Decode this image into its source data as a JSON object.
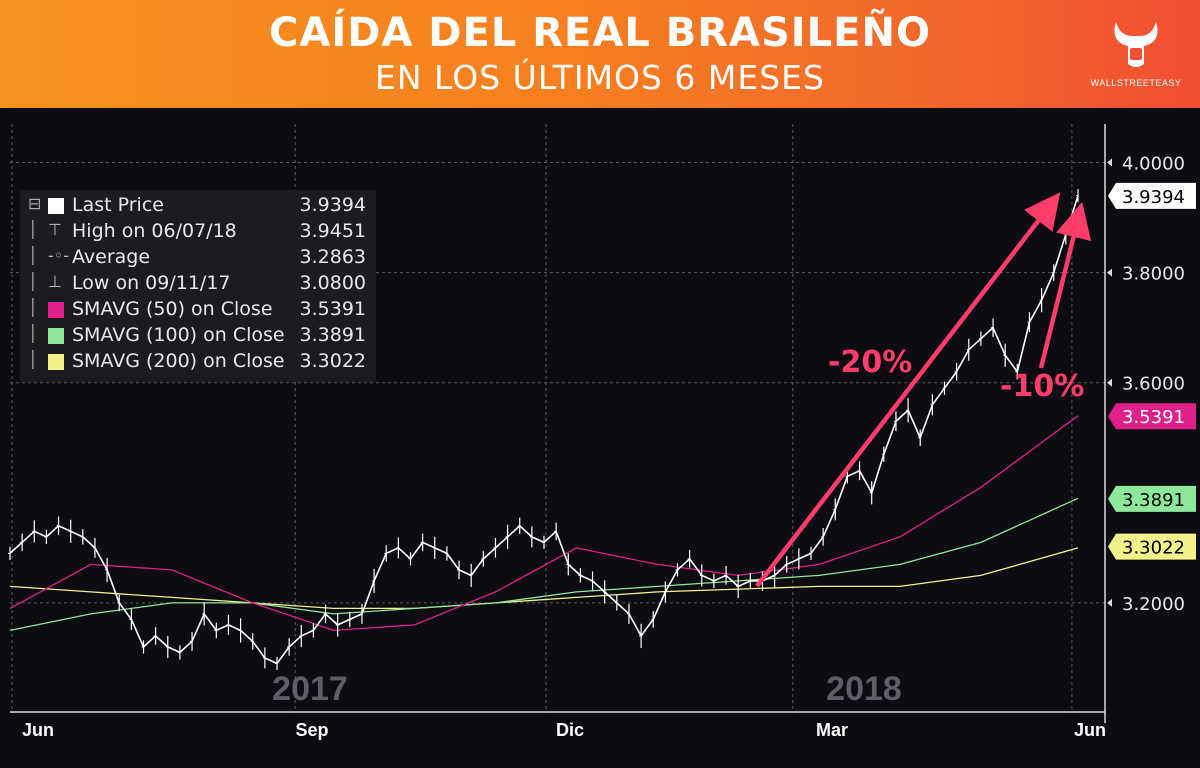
{
  "header": {
    "title": "CAÍDA DEL REAL BRASILEÑO",
    "subtitle": "EN LOS ÚLTIMOS 6 MESES",
    "logo_text": "WALLSTREETEASY"
  },
  "legend": [
    {
      "label": "Last Price",
      "value": "3.9394",
      "color": "#ffffff",
      "icon": "square-icon"
    },
    {
      "label": "High on 06/07/18",
      "value": "3.9451",
      "color": "",
      "icon": "high-marker-icon"
    },
    {
      "label": "Average",
      "value": "3.2863",
      "color": "",
      "icon": "average-line-icon"
    },
    {
      "label": "Low on 09/11/17",
      "value": "3.0800",
      "color": "",
      "icon": "low-marker-icon"
    },
    {
      "label": "SMAVG (50) on Close",
      "value": "3.5391",
      "color": "#e0208a",
      "icon": "square-icon"
    },
    {
      "label": "SMAVG (100) on Close",
      "value": "3.3891",
      "color": "#8ee89a",
      "icon": "square-icon"
    },
    {
      "label": "SMAVG (200) on Close",
      "value": "3.3022",
      "color": "#f2f28a",
      "icon": "square-icon"
    }
  ],
  "annotations": {
    "arrow1_label": "-20%",
    "arrow2_label": "-10%",
    "arrow_color": "#ff3d6b"
  },
  "watermarks": [
    "2017",
    "2018"
  ],
  "chart_data": {
    "type": "line",
    "x_ticks": [
      "Jun",
      "Sep",
      "Dic",
      "Mar",
      "Jun"
    ],
    "y_ticks": [
      "4.0000",
      "3.8000",
      "3.6000",
      "3.2000"
    ],
    "ylim": [
      3.0,
      4.07
    ],
    "grid": true,
    "legend_position": "top-left",
    "right_labels": [
      {
        "value": 3.9394,
        "text": "3.9394",
        "color": "#ffffff",
        "text_color": "#000000"
      },
      {
        "value": 3.5391,
        "text": "3.5391",
        "color": "#e0208a",
        "text_color": "#ffffff"
      },
      {
        "value": 3.3891,
        "text": "3.3891",
        "color": "#8ee89a",
        "text_color": "#000000"
      },
      {
        "value": 3.3022,
        "text": "3.3022",
        "color": "#f2f28a",
        "text_color": "#000000"
      }
    ],
    "series": [
      {
        "name": "Last Price",
        "color": "#ffffff",
        "x": [
          0,
          3,
          6,
          9,
          12,
          15,
          18,
          21,
          24,
          27,
          30,
          33,
          36,
          39,
          42,
          45,
          48,
          51,
          54,
          57,
          60,
          63,
          66,
          69,
          72,
          75,
          78,
          81,
          84,
          87,
          90,
          93,
          96,
          99,
          102,
          105,
          108,
          111,
          114,
          117,
          120,
          123,
          126,
          129,
          132,
          135,
          138,
          141,
          144,
          147,
          150,
          153,
          156,
          159,
          162,
          165,
          168,
          171,
          174,
          177,
          180,
          183,
          186,
          189,
          192,
          195,
          198,
          201,
          204,
          207,
          210,
          213,
          216,
          219,
          222,
          225,
          228,
          231,
          234,
          237,
          240,
          243,
          246,
          249,
          252,
          255,
          258,
          261,
          264
        ],
        "values": [
          3.29,
          3.31,
          3.33,
          3.32,
          3.34,
          3.33,
          3.32,
          3.3,
          3.26,
          3.2,
          3.17,
          3.12,
          3.14,
          3.12,
          3.11,
          3.13,
          3.18,
          3.15,
          3.16,
          3.15,
          3.13,
          3.1,
          3.09,
          3.12,
          3.14,
          3.15,
          3.18,
          3.16,
          3.17,
          3.18,
          3.24,
          3.29,
          3.3,
          3.28,
          3.31,
          3.3,
          3.29,
          3.26,
          3.25,
          3.28,
          3.3,
          3.32,
          3.34,
          3.32,
          3.31,
          3.33,
          3.27,
          3.25,
          3.24,
          3.22,
          3.2,
          3.18,
          3.14,
          3.17,
          3.22,
          3.26,
          3.28,
          3.25,
          3.24,
          3.25,
          3.23,
          3.24,
          3.24,
          3.25,
          3.27,
          3.28,
          3.29,
          3.32,
          3.37,
          3.43,
          3.44,
          3.4,
          3.47,
          3.53,
          3.55,
          3.5,
          3.56,
          3.59,
          3.62,
          3.66,
          3.68,
          3.7,
          3.65,
          3.62,
          3.71,
          3.75,
          3.8,
          3.87,
          3.94
        ]
      },
      {
        "name": "SMAVG (50) on Close",
        "color": "#e0208a",
        "x": [
          0,
          20,
          40,
          60,
          80,
          100,
          120,
          140,
          160,
          180,
          200,
          220,
          240,
          264
        ],
        "values": [
          3.19,
          3.27,
          3.26,
          3.2,
          3.15,
          3.16,
          3.22,
          3.3,
          3.27,
          3.25,
          3.27,
          3.32,
          3.41,
          3.54
        ]
      },
      {
        "name": "SMAVG (100) on Close",
        "color": "#8ee89a",
        "x": [
          0,
          20,
          40,
          60,
          80,
          100,
          120,
          140,
          160,
          180,
          200,
          220,
          240,
          264
        ],
        "values": [
          3.15,
          3.18,
          3.2,
          3.2,
          3.18,
          3.19,
          3.2,
          3.22,
          3.23,
          3.24,
          3.25,
          3.27,
          3.31,
          3.39
        ]
      },
      {
        "name": "SMAVG (200) on Close",
        "color": "#f2f28a",
        "x": [
          0,
          20,
          40,
          60,
          80,
          100,
          120,
          140,
          160,
          180,
          200,
          220,
          240,
          264
        ],
        "values": [
          3.23,
          3.22,
          3.21,
          3.2,
          3.19,
          3.19,
          3.2,
          3.21,
          3.22,
          3.225,
          3.23,
          3.23,
          3.25,
          3.3
        ]
      }
    ]
  }
}
